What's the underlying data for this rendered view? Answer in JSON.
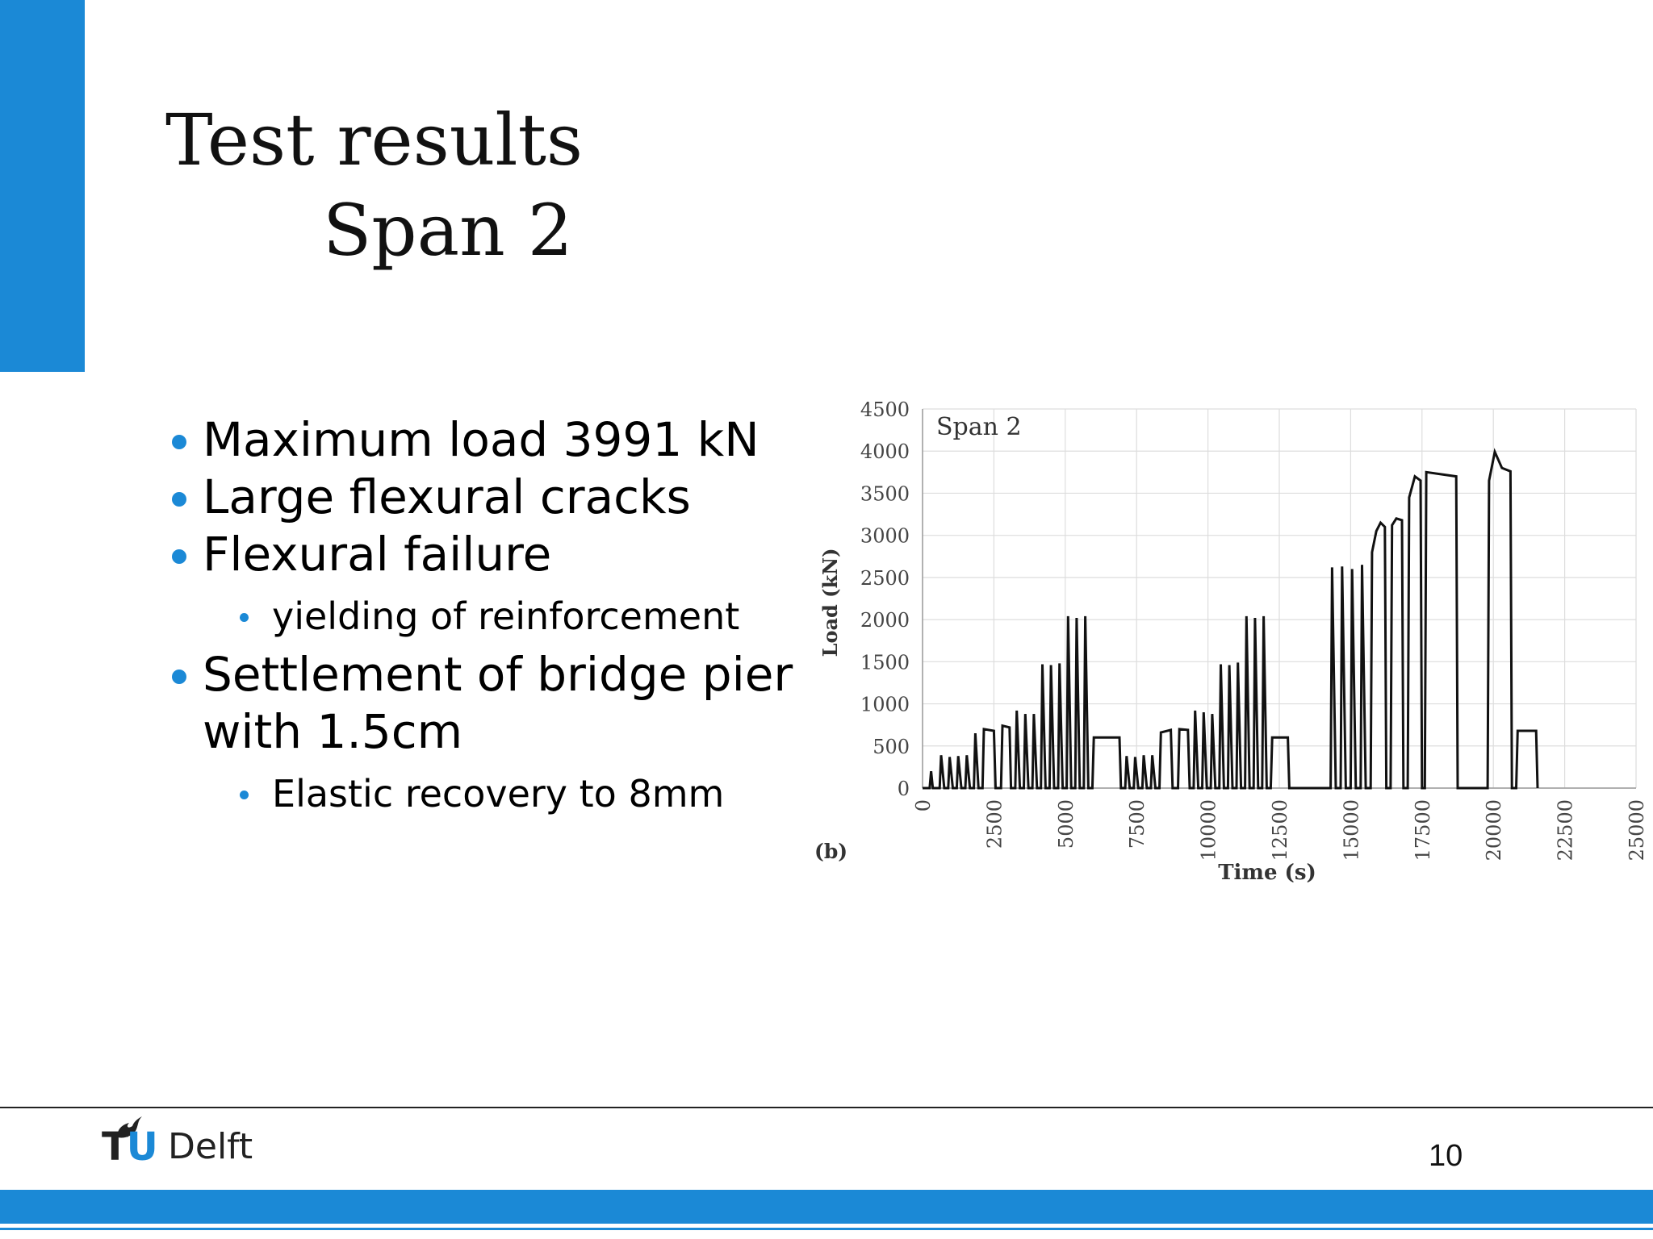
{
  "slide": {
    "title_line1": "Test results",
    "title_line2": "Span 2",
    "page_number": "10",
    "accent_color": "#1b89d6"
  },
  "bullets": [
    {
      "level": 1,
      "text": "Maximum load 3991 kN"
    },
    {
      "level": 1,
      "text": "Large flexural cracks"
    },
    {
      "level": 1,
      "text": "Flexural failure"
    },
    {
      "level": 2,
      "text": "yielding of reinforcement"
    },
    {
      "level": 1,
      "text": "Settlement of bridge pier with 1.5cm"
    },
    {
      "level": 2,
      "text": "Elastic recovery to 8mm"
    }
  ],
  "logo": {
    "tu": "TU",
    "delft": "Delft"
  },
  "chart_data": {
    "type": "line",
    "annotation": "Span 2",
    "panel_label": "(b)",
    "xlabel": "Time (s)",
    "ylabel": "Load (kN)",
    "xlim": [
      0,
      25000
    ],
    "ylim": [
      0,
      4500
    ],
    "x_ticks": [
      "0",
      "2500",
      "5000",
      "7500",
      "10000",
      "12500",
      "15000",
      "17500",
      "20000",
      "22500",
      "25000"
    ],
    "y_ticks": [
      "0",
      "500",
      "1000",
      "1500",
      "2000",
      "2500",
      "3000",
      "3500",
      "4000",
      "4500"
    ],
    "grid": true,
    "series_color": "#111111",
    "points": [
      [
        0,
        0
      ],
      [
        250,
        0
      ],
      [
        300,
        200
      ],
      [
        360,
        0
      ],
      [
        600,
        0
      ],
      [
        650,
        390
      ],
      [
        760,
        0
      ],
      [
        900,
        0
      ],
      [
        950,
        370
      ],
      [
        1060,
        0
      ],
      [
        1200,
        0
      ],
      [
        1250,
        380
      ],
      [
        1360,
        0
      ],
      [
        1500,
        0
      ],
      [
        1550,
        390
      ],
      [
        1660,
        0
      ],
      [
        1800,
        0
      ],
      [
        1850,
        650
      ],
      [
        1960,
        0
      ],
      [
        2100,
        0
      ],
      [
        2150,
        700
      ],
      [
        2500,
        680
      ],
      [
        2560,
        0
      ],
      [
        2750,
        0
      ],
      [
        2800,
        740
      ],
      [
        3050,
        720
      ],
      [
        3100,
        0
      ],
      [
        3250,
        0
      ],
      [
        3300,
        920
      ],
      [
        3410,
        0
      ],
      [
        3550,
        0
      ],
      [
        3600,
        880
      ],
      [
        3710,
        0
      ],
      [
        3850,
        0
      ],
      [
        3900,
        880
      ],
      [
        4010,
        0
      ],
      [
        4150,
        0
      ],
      [
        4200,
        1470
      ],
      [
        4310,
        0
      ],
      [
        4450,
        0
      ],
      [
        4500,
        1460
      ],
      [
        4610,
        0
      ],
      [
        4750,
        0
      ],
      [
        4800,
        1480
      ],
      [
        4910,
        0
      ],
      [
        5050,
        0
      ],
      [
        5100,
        2040
      ],
      [
        5210,
        0
      ],
      [
        5350,
        0
      ],
      [
        5400,
        2020
      ],
      [
        5510,
        0
      ],
      [
        5650,
        0
      ],
      [
        5700,
        2040
      ],
      [
        5810,
        0
      ],
      [
        5950,
        0
      ],
      [
        6000,
        600
      ],
      [
        6900,
        600
      ],
      [
        6950,
        0
      ],
      [
        7100,
        0
      ],
      [
        7150,
        380
      ],
      [
        7260,
        0
      ],
      [
        7400,
        0
      ],
      [
        7450,
        370
      ],
      [
        7560,
        0
      ],
      [
        7700,
        0
      ],
      [
        7750,
        390
      ],
      [
        7860,
        0
      ],
      [
        8000,
        0
      ],
      [
        8050,
        390
      ],
      [
        8160,
        0
      ],
      [
        8300,
        0
      ],
      [
        8350,
        660
      ],
      [
        8700,
        690
      ],
      [
        8760,
        0
      ],
      [
        8950,
        0
      ],
      [
        9000,
        700
      ],
      [
        9300,
        690
      ],
      [
        9360,
        0
      ],
      [
        9500,
        0
      ],
      [
        9550,
        920
      ],
      [
        9660,
        0
      ],
      [
        9800,
        0
      ],
      [
        9850,
        900
      ],
      [
        9960,
        0
      ],
      [
        10100,
        0
      ],
      [
        10150,
        880
      ],
      [
        10260,
        0
      ],
      [
        10400,
        0
      ],
      [
        10450,
        1470
      ],
      [
        10560,
        0
      ],
      [
        10700,
        0
      ],
      [
        10750,
        1460
      ],
      [
        10860,
        0
      ],
      [
        11000,
        0
      ],
      [
        11050,
        1490
      ],
      [
        11160,
        0
      ],
      [
        11300,
        0
      ],
      [
        11350,
        2040
      ],
      [
        11460,
        0
      ],
      [
        11600,
        0
      ],
      [
        11650,
        2020
      ],
      [
        11760,
        0
      ],
      [
        11900,
        0
      ],
      [
        11950,
        2040
      ],
      [
        12060,
        0
      ],
      [
        12200,
        0
      ],
      [
        12250,
        600
      ],
      [
        12800,
        600
      ],
      [
        12850,
        0
      ],
      [
        14300,
        0
      ],
      [
        14350,
        2620
      ],
      [
        14480,
        0
      ],
      [
        14650,
        0
      ],
      [
        14700,
        2630
      ],
      [
        14830,
        0
      ],
      [
        15000,
        0
      ],
      [
        15050,
        2600
      ],
      [
        15180,
        0
      ],
      [
        15350,
        0
      ],
      [
        15400,
        2650
      ],
      [
        15530,
        0
      ],
      [
        15700,
        0
      ],
      [
        15750,
        2800
      ],
      [
        15900,
        3050
      ],
      [
        16050,
        3150
      ],
      [
        16200,
        3100
      ],
      [
        16250,
        0
      ],
      [
        16400,
        0
      ],
      [
        16450,
        3120
      ],
      [
        16600,
        3200
      ],
      [
        16800,
        3180
      ],
      [
        16850,
        0
      ],
      [
        17000,
        0
      ],
      [
        17050,
        3450
      ],
      [
        17250,
        3700
      ],
      [
        17450,
        3650
      ],
      [
        17500,
        0
      ],
      [
        17600,
        0
      ],
      [
        17650,
        3750
      ],
      [
        18700,
        3700
      ],
      [
        18750,
        0
      ],
      [
        19800,
        0
      ],
      [
        19850,
        3650
      ],
      [
        20050,
        3991
      ],
      [
        20300,
        3800
      ],
      [
        20600,
        3760
      ],
      [
        20650,
        0
      ],
      [
        20800,
        0
      ],
      [
        20850,
        680
      ],
      [
        21500,
        680
      ],
      [
        21550,
        0
      ]
    ]
  }
}
